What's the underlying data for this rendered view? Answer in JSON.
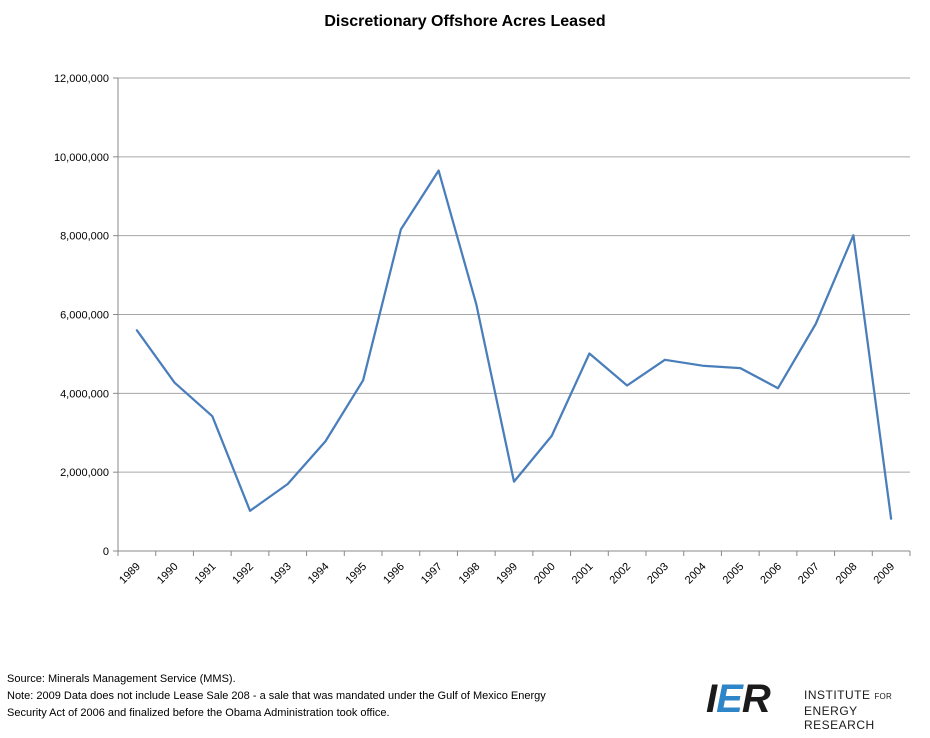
{
  "chart_data": {
    "type": "line",
    "title": "Discretionary Offshore Acres Leased",
    "xlabel": "",
    "ylabel": "",
    "ylim": [
      0,
      12000000
    ],
    "yticks": [
      0,
      2000000,
      4000000,
      6000000,
      8000000,
      10000000,
      12000000
    ],
    "ytick_labels": [
      "0",
      "2,000,000",
      "4,000,000",
      "6,000,000",
      "8,000,000",
      "10,000,000",
      "12,000,000"
    ],
    "categories": [
      "1989",
      "1990",
      "1991",
      "1992",
      "1993",
      "1994",
      "1995",
      "1996",
      "1997",
      "1998",
      "1999",
      "2000",
      "2001",
      "2002",
      "2003",
      "2004",
      "2005",
      "2006",
      "2007",
      "2008",
      "2009"
    ],
    "series": [
      {
        "values": [
          5600000,
          4270000,
          3420000,
          1020000,
          1700000,
          2780000,
          4330000,
          8160000,
          9650000,
          6260000,
          1760000,
          2920000,
          5010000,
          4200000,
          4850000,
          4700000,
          4640000,
          4130000,
          5760000,
          8010000,
          820000
        ],
        "color": "#4a7ebb"
      }
    ],
    "grid": true,
    "gridline_color": "#a6a6a6"
  },
  "footer": {
    "source": "Source: Minerals Management Service (MMS).",
    "note_line1": "Note: 2009 Data does not include Lease Sale 208 - a sale that was mandated under the Gulf of Mexico Energy",
    "note_line2": "Security Act of 2006 and finalized before the Obama Administration took office."
  },
  "logo": {
    "mark_i": "I",
    "mark_e": "E",
    "mark_r": "R",
    "line1": "INSTITUTE",
    "line1_small": "FOR",
    "line2": "ENERGY RESEARCH"
  }
}
